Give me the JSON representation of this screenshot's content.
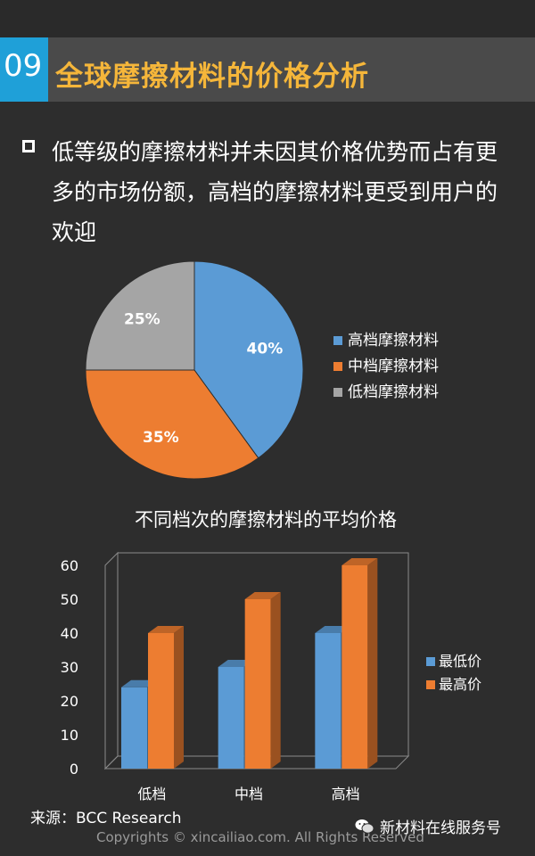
{
  "header": {
    "number": "09",
    "title": "全球摩擦材料的价格分析"
  },
  "body": {
    "text": "低等级的摩擦材料并未因其价格优势而占有更多的市场份额，高档的摩擦材料更受到用户的欢迎"
  },
  "colors": {
    "blue": "#5b9bd5",
    "orange": "#ed7d31",
    "gray": "#a5a5a5",
    "accent": "#f5b63a",
    "header_bg": "#4a4a4a",
    "number_bg": "#1fa0d8"
  },
  "chart_data": [
    {
      "type": "pie",
      "slices": [
        {
          "label": "高档摩擦材料",
          "value": 40,
          "display": "40%",
          "color": "#5b9bd5"
        },
        {
          "label": "中档摩擦材料",
          "value": 35,
          "display": "35%",
          "color": "#ed7d31"
        },
        {
          "label": "低档摩擦材料",
          "value": 25,
          "display": "25%",
          "color": "#a5a5a5"
        }
      ],
      "legend_position": "right"
    },
    {
      "type": "bar",
      "title": "不同档次的摩擦材料的平均价格",
      "categories": [
        "低档",
        "中档",
        "高档"
      ],
      "series": [
        {
          "name": "最低价",
          "values": [
            24,
            30,
            40
          ],
          "color": "#5b9bd5"
        },
        {
          "name": "最高价",
          "values": [
            40,
            50,
            60
          ],
          "color": "#ed7d31"
        }
      ],
      "ylim": [
        0,
        60
      ],
      "yticks": [
        "0",
        "10",
        "20",
        "30",
        "40",
        "50",
        "60"
      ],
      "grid": false,
      "legend_position": "right"
    }
  ],
  "footer": {
    "source": "来源：BCC Research",
    "copyright": "Copyrights © xincailiao.com. All Rights Reserved",
    "wechat": "新材料在线服务号"
  }
}
